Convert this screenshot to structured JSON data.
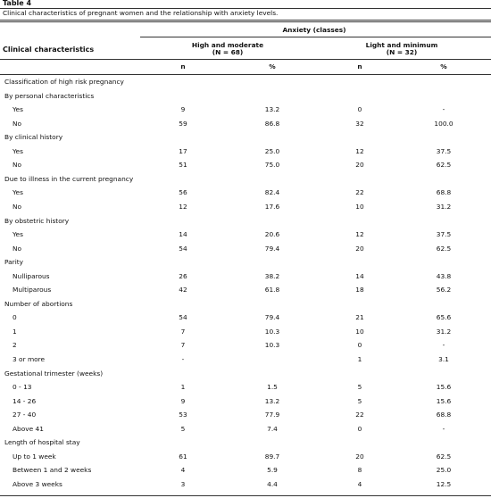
{
  "header": {
    "label": "Table 4",
    "caption": "Clinical characteristics of pregnant women and the relationship with anxiety levels."
  },
  "table": {
    "stub_header": "Clinical characteristics",
    "spanner": "Anxiety (classes)",
    "groups": [
      {
        "name": "High and moderate",
        "size": "(N = 68)"
      },
      {
        "name": "Light and minimum",
        "size": "(N = 32)"
      }
    ],
    "subheaders": [
      "n",
      "%",
      "n",
      "%"
    ],
    "rows": [
      {
        "label": "Classification of high risk pregnancy"
      },
      {
        "label": "By personal characteristics"
      },
      {
        "label": "Yes",
        "cells": [
          "9",
          "13.2",
          "0",
          "-"
        ]
      },
      {
        "label": "No",
        "cells": [
          "59",
          "86.8",
          "32",
          "100.0"
        ]
      },
      {
        "label": "By clinical history"
      },
      {
        "label": "Yes",
        "cells": [
          "17",
          "25.0",
          "12",
          "37.5"
        ]
      },
      {
        "label": "No",
        "cells": [
          "51",
          "75.0",
          "20",
          "62.5"
        ]
      },
      {
        "label": "Due to illness in the current pregnancy"
      },
      {
        "label": "Yes",
        "cells": [
          "56",
          "82.4",
          "22",
          "68.8"
        ]
      },
      {
        "label": "No",
        "cells": [
          "12",
          "17.6",
          "10",
          "31.2"
        ]
      },
      {
        "label": "By obstetric history"
      },
      {
        "label": "Yes",
        "cells": [
          "14",
          "20.6",
          "12",
          "37.5"
        ]
      },
      {
        "label": "No",
        "cells": [
          "54",
          "79.4",
          "20",
          "62.5"
        ]
      },
      {
        "label": "Parity"
      },
      {
        "label": "Nulliparous",
        "cells": [
          "26",
          "38.2",
          "14",
          "43.8"
        ]
      },
      {
        "label": "Multiparous",
        "cells": [
          "42",
          "61.8",
          "18",
          "56.2"
        ]
      },
      {
        "label": "Number of abortions"
      },
      {
        "label": "0",
        "cells": [
          "54",
          "79.4",
          "21",
          "65.6"
        ]
      },
      {
        "label": "1",
        "cells": [
          "7",
          "10.3",
          "10",
          "31.2"
        ]
      },
      {
        "label": "2",
        "cells": [
          "7",
          "10.3",
          "0",
          "-"
        ]
      },
      {
        "label": "3 or more",
        "cells": [
          "-",
          null,
          "1",
          "3.1"
        ]
      },
      {
        "label": "Gestational trimester (weeks)"
      },
      {
        "label": "0 - 13",
        "cells": [
          "1",
          "1.5",
          "5",
          "15.6"
        ]
      },
      {
        "label": "14 - 26",
        "cells": [
          "9",
          "13.2",
          "5",
          "15.6"
        ]
      },
      {
        "label": "27 - 40",
        "cells": [
          "53",
          "77.9",
          "22",
          "68.8"
        ]
      },
      {
        "label": "Above 41",
        "cells": [
          "5",
          "7.4",
          "0",
          "-"
        ]
      },
      {
        "label": "Length of hospital stay"
      },
      {
        "label": "Up to 1 week",
        "cells": [
          "61",
          "89.7",
          "20",
          "62.5"
        ]
      },
      {
        "label": "Between 1 and 2 weeks",
        "cells": [
          "4",
          "5.9",
          "8",
          "25.0"
        ]
      },
      {
        "label": "Above 3 weeks",
        "cells": [
          "3",
          "4.4",
          "4",
          "12.5"
        ]
      }
    ]
  }
}
